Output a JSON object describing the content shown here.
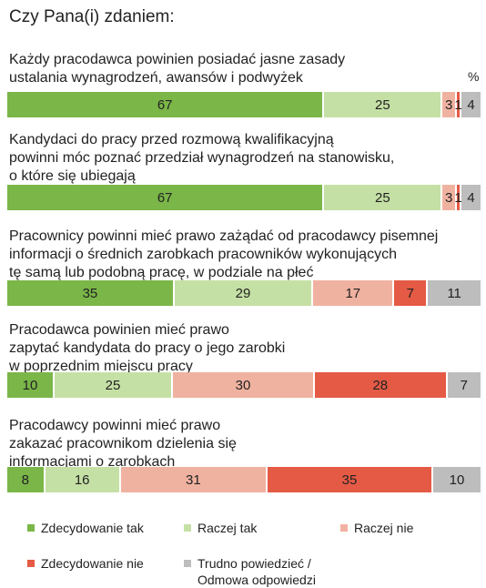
{
  "title": "Czy Pana(i) zdaniem:",
  "unit": "%",
  "colors": {
    "zdecydowanie_tak": "#7ab648",
    "raczej_tak": "#c5e0a5",
    "raczej_nie": "#f0b2a0",
    "zdecydowanie_nie": "#e55a45",
    "trudno": "#bdbdbd"
  },
  "chart_data": {
    "type": "bar",
    "orientation": "horizontal-stacked",
    "title": "Czy Pana(i) zdaniem:",
    "unit": "%",
    "legend_position": "bottom",
    "series_names": [
      "Zdecydowanie tak",
      "Raczej tak",
      "Raczej nie",
      "Zdecydowanie nie",
      "Trudno powiedzieć / Odmowa odpowiedzi"
    ],
    "questions": [
      {
        "text": "Każdy pracodawca powinien posiadać jasne zasady\nustalania wynagrodzeń, awansów i podwyżek",
        "values": [
          67,
          25,
          3,
          1,
          4
        ]
      },
      {
        "text": "Kandydaci do pracy przed rozmową kwalifikacyjną\npowinni móc poznać przedział wynagrodzeń na stanowisku,\no które się ubiegają",
        "values": [
          67,
          25,
          3,
          1,
          4
        ]
      },
      {
        "text": "Pracownicy powinni mieć prawo zażądać od pracodawcy pisemnej\ninformacji o średnich zarobkach pracowników wykonujących\ntę samą lub podobną pracę, w podziale na płeć",
        "values": [
          35,
          29,
          17,
          7,
          11
        ]
      },
      {
        "text": "Pracodawca powinien mieć prawo\nzapytać kandydata do pracy o jego zarobki\nw poprzednim miejscu pracy",
        "values": [
          10,
          25,
          30,
          28,
          7
        ]
      },
      {
        "text": "Pracodawcy powinni mieć prawo\nzakazać pracownikom dzielenia się\ninformacjami o zarobkach",
        "values": [
          8,
          16,
          31,
          35,
          10
        ]
      }
    ]
  },
  "legend": [
    {
      "label": "Zdecydowanie tak",
      "color": "#7ab648"
    },
    {
      "label": "Raczej tak",
      "color": "#c5e0a5"
    },
    {
      "label": "Raczej nie",
      "color": "#f0b2a0"
    },
    {
      "label": "Zdecydowanie nie",
      "color": "#e55a45"
    },
    {
      "label": "Trudno powiedzieć /\nOdmowa odpowiedzi",
      "color": "#bdbdbd"
    }
  ]
}
